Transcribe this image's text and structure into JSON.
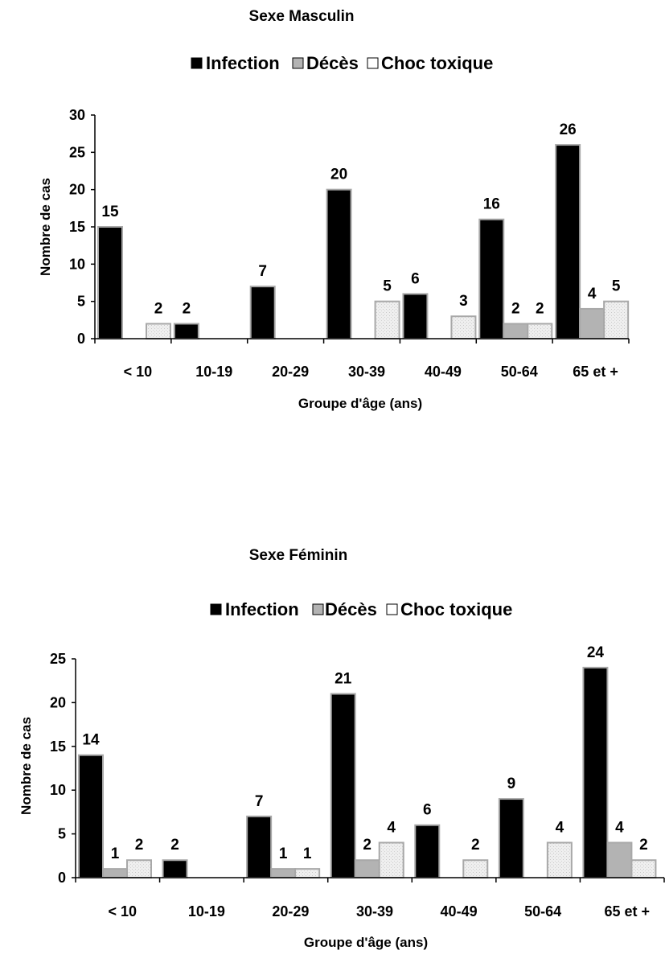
{
  "chart_data": [
    {
      "type": "bar",
      "title": "Sexe Masculin",
      "xlabel": "Groupe d'âge (ans)",
      "ylabel": "Nombre de cas",
      "categories": [
        "< 10",
        "10-19",
        "20-29",
        "30-39",
        "40-49",
        "50-64",
        "65 et +"
      ],
      "ylim": [
        0,
        30
      ],
      "yticks": [
        0,
        5,
        10,
        15,
        20,
        25,
        30
      ],
      "legend_position": "top",
      "grid": false,
      "series": [
        {
          "name": "Infection",
          "color": "#000000",
          "values": [
            15,
            2,
            7,
            20,
            6,
            16,
            26
          ]
        },
        {
          "name": "Décès",
          "color": "#b3b3b3",
          "values": [
            null,
            null,
            null,
            null,
            null,
            2,
            4
          ]
        },
        {
          "name": "Choc toxique",
          "color": "#ececec",
          "values": [
            2,
            null,
            null,
            5,
            3,
            2,
            5
          ]
        }
      ]
    },
    {
      "type": "bar",
      "title": "Sexe Féminin",
      "xlabel": "Groupe d'âge (ans)",
      "ylabel": "Nombre de cas",
      "categories": [
        "< 10",
        "10-19",
        "20-29",
        "30-39",
        "40-49",
        "50-64",
        "65 et +"
      ],
      "ylim": [
        0,
        25
      ],
      "yticks": [
        0,
        5,
        10,
        15,
        20,
        25
      ],
      "legend_position": "top",
      "grid": false,
      "series": [
        {
          "name": "Infection",
          "color": "#000000",
          "values": [
            14,
            2,
            7,
            21,
            6,
            9,
            24
          ]
        },
        {
          "name": "Décès",
          "color": "#b3b3b3",
          "values": [
            1,
            null,
            1,
            2,
            null,
            null,
            4
          ]
        },
        {
          "name": "Choc toxique",
          "color": "#ececec",
          "values": [
            2,
            null,
            1,
            4,
            2,
            4,
            2
          ]
        }
      ]
    }
  ]
}
